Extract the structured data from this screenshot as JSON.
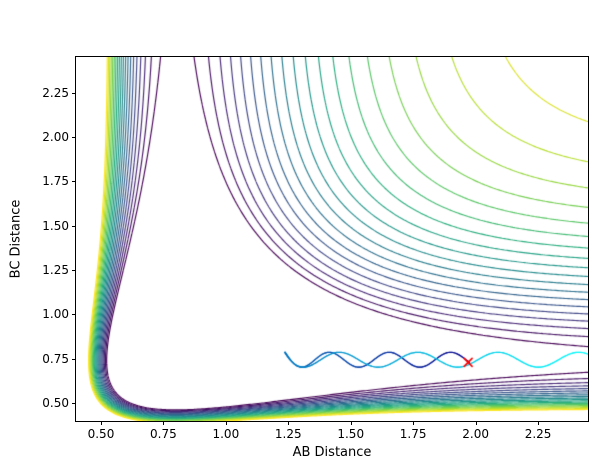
{
  "chart_data": {
    "type": "contour",
    "title": "",
    "xlabel": "AB Distance",
    "ylabel": "BC Distance",
    "xlim": [
      0.4,
      2.45
    ],
    "ylim": [
      0.4,
      2.45
    ],
    "xticks": [
      0.5,
      0.75,
      1.0,
      1.25,
      1.5,
      1.75,
      2.0,
      2.25
    ],
    "xtick_labels": [
      "0.50",
      "0.75",
      "1.00",
      "1.25",
      "1.50",
      "1.75",
      "2.00",
      "2.25"
    ],
    "yticks": [
      0.5,
      0.75,
      1.0,
      1.25,
      1.5,
      1.75,
      2.0,
      2.25
    ],
    "ytick_labels": [
      "0.50",
      "0.75",
      "1.00",
      "1.25",
      "1.50",
      "1.75",
      "2.00",
      "2.25"
    ],
    "grid": false,
    "legend": null,
    "colormap": "viridis",
    "colormap_stops": [
      "#440154",
      "#472d7b",
      "#3b528b",
      "#2c728e",
      "#21918c",
      "#27ad81",
      "#5ec962",
      "#aadc32",
      "#fde725"
    ],
    "contour_levels": {
      "start": 1.0,
      "end": 1.95,
      "count": 20
    },
    "surface_model": {
      "type": "sum_of_morse_potentials",
      "formula": "V(rAB,rBC) = D*(1-exp(-alpha*(rAB-r0_ab)))^2 + D*(1-exp(-alpha*(rBC-r0_bc)))^2",
      "D": 1.0,
      "alpha": 2.5,
      "r0_ab": 0.8,
      "r0_bc": 0.74
    },
    "trajectory": {
      "y_center": 0.745,
      "amplitude": 0.042,
      "x_start": 1.97,
      "x_turn": 1.13,
      "x_end": 2.47,
      "t_turn": 0.45,
      "turn_width": 0.05,
      "cycles": 7.5,
      "phase": -0.37,
      "color_start": "#00008b",
      "color_end": "#00ffff",
      "linewidth": 1.2
    },
    "start_marker": {
      "x": 1.97,
      "y": 0.73,
      "symbol": "x",
      "color": "#ff0000",
      "size": 8
    }
  }
}
